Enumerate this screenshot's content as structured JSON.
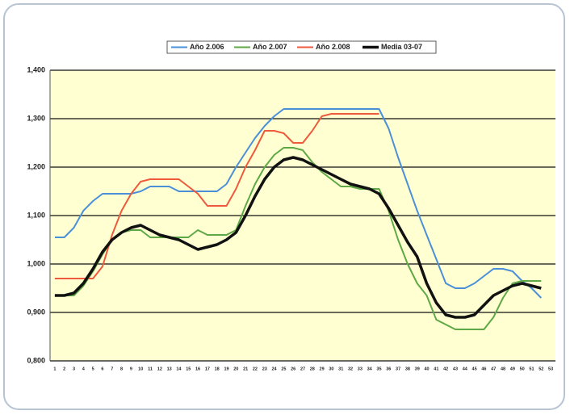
{
  "chart_data": {
    "type": "line",
    "categories": [
      1,
      2,
      3,
      4,
      5,
      6,
      7,
      8,
      9,
      10,
      11,
      12,
      13,
      14,
      15,
      16,
      17,
      18,
      19,
      20,
      21,
      22,
      23,
      24,
      25,
      26,
      27,
      28,
      29,
      30,
      31,
      32,
      33,
      34,
      35,
      36,
      37,
      38,
      39,
      40,
      41,
      42,
      43,
      44,
      45,
      46,
      47,
      48,
      49,
      50,
      51,
      52,
      53
    ],
    "series": [
      {
        "name": "Año 2.006",
        "color": "#4a90d9",
        "width": 2,
        "values": [
          1.055,
          1.055,
          1.075,
          1.11,
          1.13,
          1.145,
          1.145,
          1.145,
          1.145,
          1.15,
          1.16,
          1.16,
          1.16,
          1.15,
          1.15,
          1.15,
          1.15,
          1.15,
          1.165,
          1.2,
          1.23,
          1.26,
          1.285,
          1.305,
          1.32,
          1.32,
          1.32,
          1.32,
          1.32,
          1.32,
          1.32,
          1.32,
          1.32,
          1.32,
          1.32,
          1.28,
          1.22,
          1.165,
          1.11,
          1.06,
          1.01,
          0.96,
          0.95,
          0.95,
          0.96,
          0.975,
          0.99,
          0.99,
          0.985,
          0.965,
          0.95,
          0.93,
          null
        ]
      },
      {
        "name": "Año 2.007",
        "color": "#5fa846",
        "width": 2,
        "values": [
          0.935,
          0.935,
          0.935,
          0.955,
          0.985,
          1.02,
          1.05,
          1.065,
          1.07,
          1.07,
          1.055,
          1.055,
          1.055,
          1.055,
          1.055,
          1.07,
          1.06,
          1.06,
          1.06,
          1.07,
          1.12,
          1.165,
          1.2,
          1.225,
          1.24,
          1.24,
          1.235,
          1.21,
          1.19,
          1.175,
          1.16,
          1.16,
          1.155,
          1.155,
          1.155,
          1.11,
          1.05,
          1.0,
          0.96,
          0.935,
          0.885,
          0.875,
          0.865,
          0.865,
          0.865,
          0.865,
          0.89,
          0.93,
          0.96,
          0.965,
          0.965,
          0.965,
          null
        ]
      },
      {
        "name": "Año 2.008",
        "color": "#ee5a3c",
        "width": 2,
        "values": [
          0.97,
          0.97,
          0.97,
          0.97,
          0.97,
          0.995,
          1.06,
          1.11,
          1.145,
          1.17,
          1.175,
          1.175,
          1.175,
          1.175,
          1.16,
          1.145,
          1.12,
          1.12,
          1.12,
          1.155,
          1.2,
          1.235,
          1.275,
          1.275,
          1.27,
          1.25,
          1.25,
          1.275,
          1.305,
          1.31,
          1.31,
          1.31,
          1.31,
          1.31,
          1.31,
          null,
          null,
          null,
          null,
          null,
          null,
          null,
          null,
          null,
          null,
          null,
          null,
          null,
          null,
          null,
          null,
          null,
          null
        ]
      },
      {
        "name": "Media 03-07",
        "color": "#111111",
        "width": 3.5,
        "values": [
          0.935,
          0.935,
          0.94,
          0.96,
          0.99,
          1.025,
          1.05,
          1.065,
          1.075,
          1.08,
          1.07,
          1.06,
          1.055,
          1.05,
          1.04,
          1.03,
          1.035,
          1.04,
          1.05,
          1.065,
          1.1,
          1.14,
          1.175,
          1.2,
          1.215,
          1.22,
          1.215,
          1.205,
          1.195,
          1.185,
          1.175,
          1.165,
          1.16,
          1.155,
          1.145,
          1.115,
          1.08,
          1.045,
          1.015,
          0.96,
          0.92,
          0.895,
          0.89,
          0.89,
          0.895,
          0.915,
          0.935,
          0.945,
          0.955,
          0.96,
          0.955,
          0.95,
          null
        ]
      }
    ],
    "ylim": [
      0.8,
      1.4
    ],
    "yticks": [
      {
        "value": 0.8,
        "label": "0,800"
      },
      {
        "value": 0.9,
        "label": "0,900"
      },
      {
        "value": 1.0,
        "label": "1,000"
      },
      {
        "value": 1.1,
        "label": "1,100"
      },
      {
        "value": 1.2,
        "label": "1,200"
      },
      {
        "value": 1.3,
        "label": "1,300"
      },
      {
        "value": 1.4,
        "label": "1,400"
      }
    ],
    "grid": true,
    "legend": "top"
  }
}
